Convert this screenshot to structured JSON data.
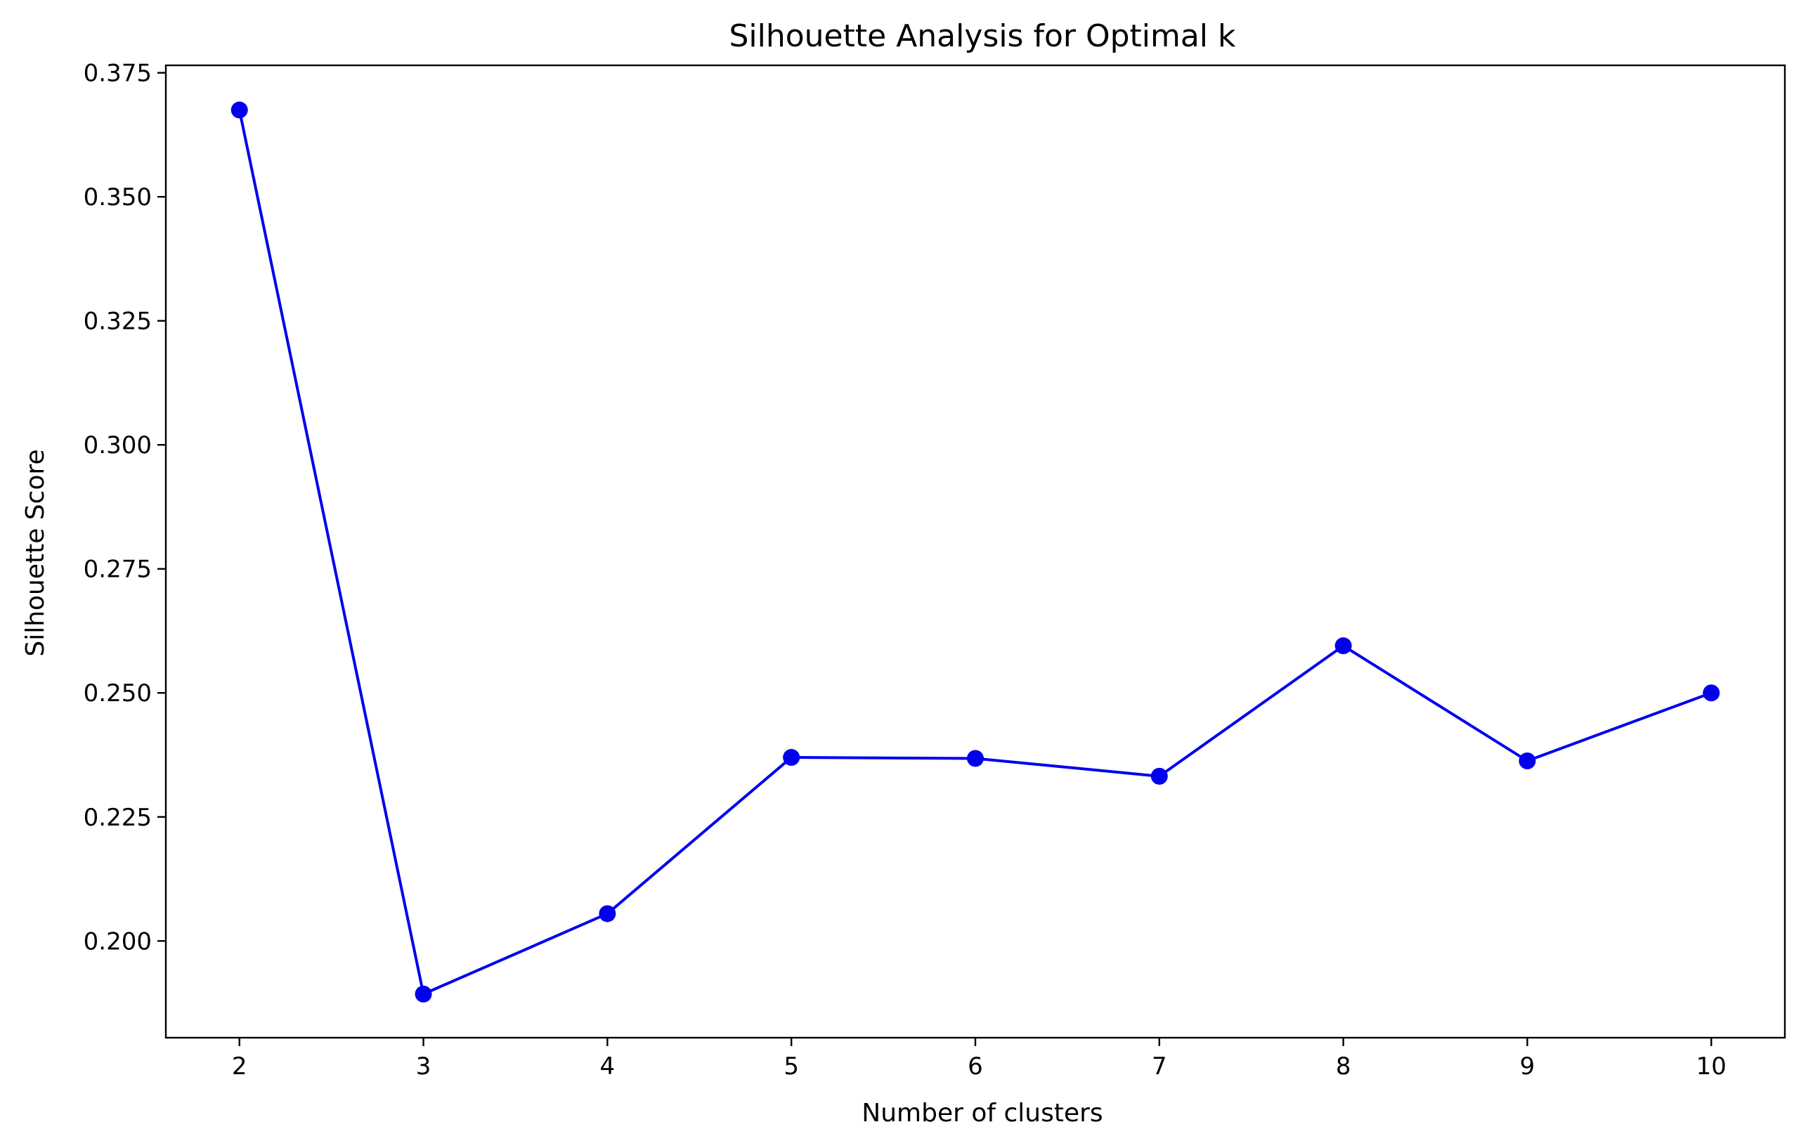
{
  "chart_data": {
    "type": "line",
    "title": "Silhouette Analysis for Optimal k",
    "xlabel": "Number of clusters",
    "ylabel": "Silhouette Score",
    "x": [
      2,
      3,
      4,
      5,
      6,
      7,
      8,
      9,
      10
    ],
    "series": [
      {
        "values": [
          0.3675,
          0.1893,
          0.2055,
          0.237,
          0.2368,
          0.2332,
          0.2595,
          0.2363,
          0.25
        ],
        "color": "#0000ee",
        "marker": "circle"
      }
    ],
    "xticks": [
      "2",
      "3",
      "4",
      "5",
      "6",
      "7",
      "8",
      "9",
      "10"
    ],
    "yticks": [
      "0.200",
      "0.225",
      "0.250",
      "0.275",
      "0.300",
      "0.325",
      "0.350",
      "0.375"
    ],
    "xlim": [
      1.6,
      10.4
    ],
    "ylim": [
      0.1805,
      0.3765
    ],
    "grid": false,
    "legend": "none"
  }
}
